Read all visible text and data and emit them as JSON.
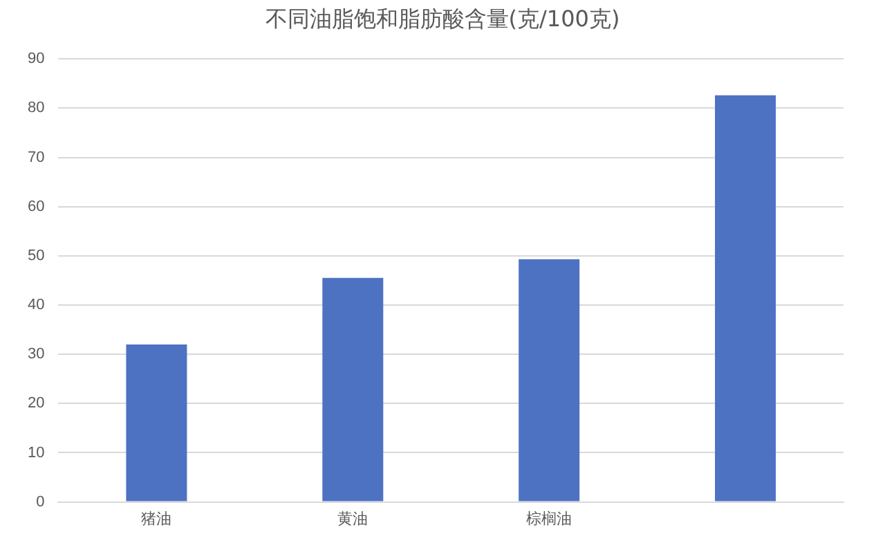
{
  "chart_data": {
    "type": "bar",
    "title": "不同油脂饱和脂肪酸含量(克/100克)",
    "categories": [
      "猪油",
      "黄油",
      "棕榈油",
      null
    ],
    "values": [
      32,
      45.5,
      49.3,
      82.6
    ],
    "color": "#4e72c2",
    "ylim": [
      0,
      90
    ],
    "yticks": [
      0,
      10,
      20,
      30,
      40,
      50,
      60,
      70,
      80,
      90
    ],
    "grid": "y"
  }
}
